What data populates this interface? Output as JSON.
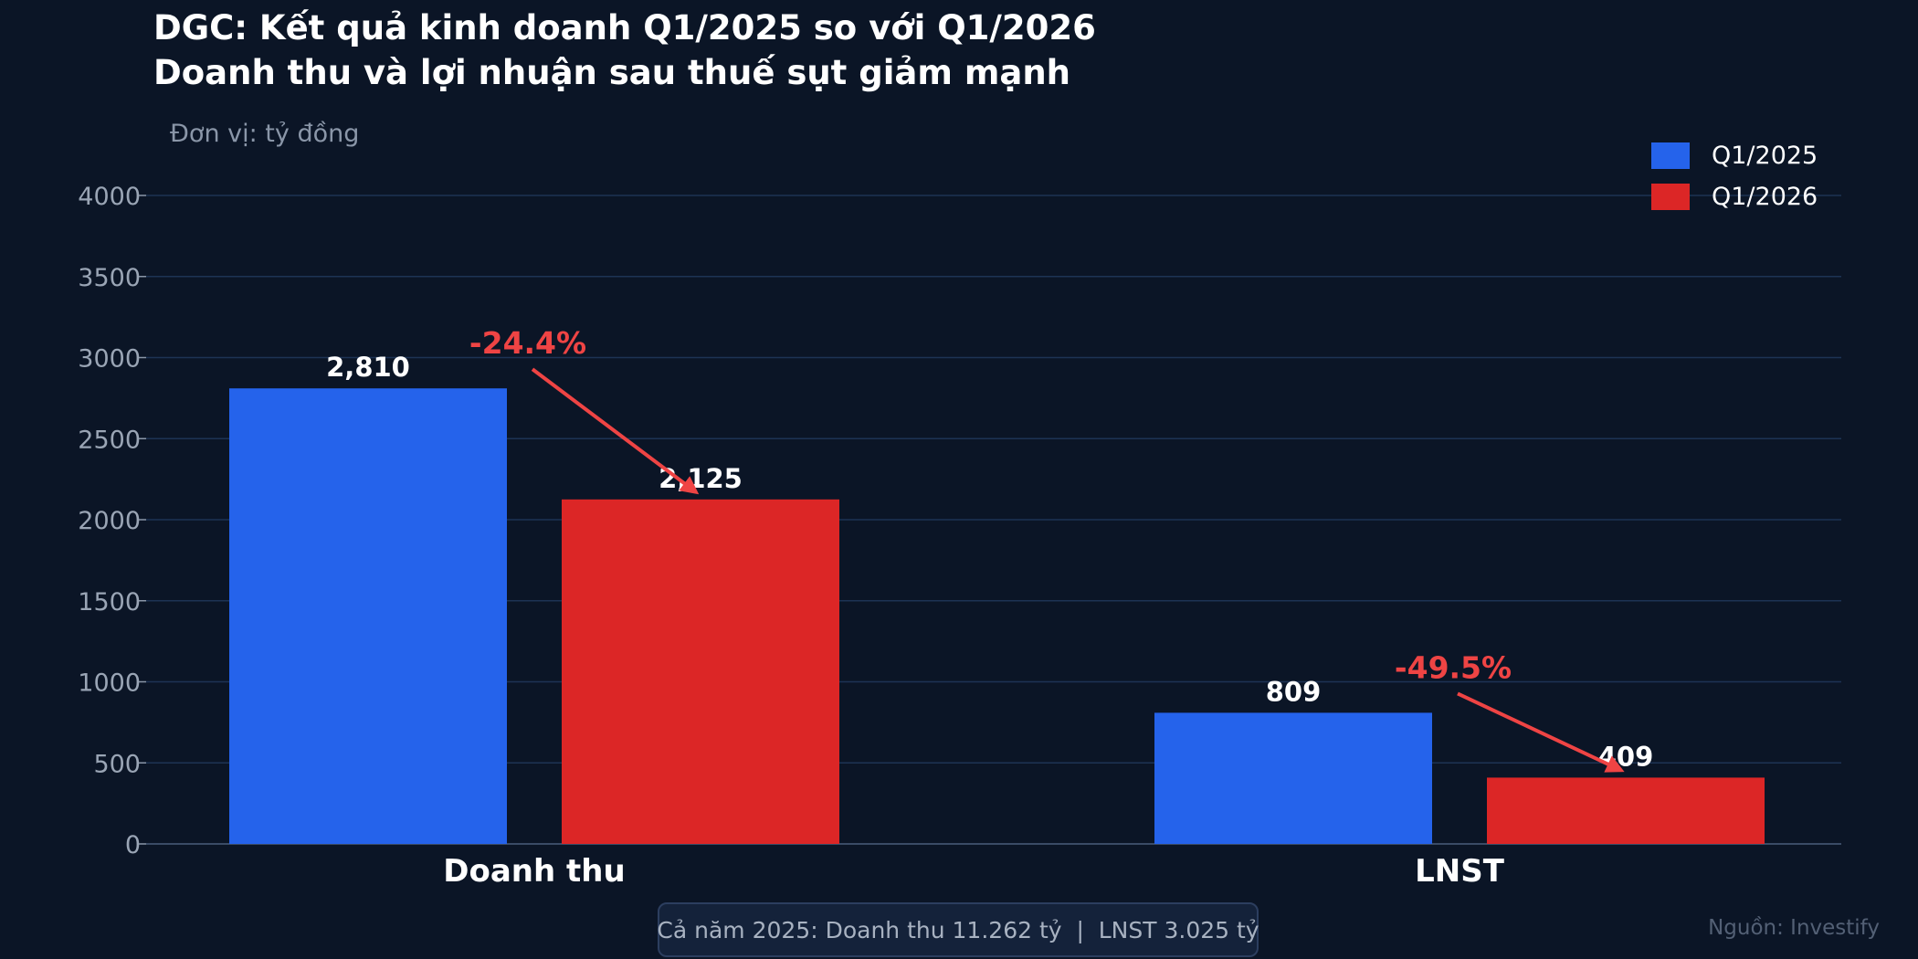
{
  "header": {
    "title_line1": "DGC: Kết quả kinh doanh Q1/2025 so với Q1/2026",
    "title_line2": "Doanh thu và lợi nhuận sau thuế sụt giảm mạnh",
    "unit": "Đơn vị: tỷ đồng"
  },
  "legend": [
    {
      "label": "Q1/2025",
      "color": "#2563eb"
    },
    {
      "label": "Q1/2026",
      "color": "#dc2626"
    }
  ],
  "footer": {
    "note": "Cả năm 2025: Doanh thu 11.262 tỷ  |  LNST 3.025 tỷ",
    "source": "Nguồn: Investify"
  },
  "chart_data": {
    "type": "bar",
    "title": "DGC: Kết quả kinh doanh Q1/2025 so với Q1/2026",
    "subtitle": "Doanh thu và lợi nhuận sau thuế sụt giảm mạnh",
    "ylabel": "Đơn vị: tỷ đồng",
    "categories": [
      "Doanh thu",
      "LNST"
    ],
    "series": [
      {
        "name": "Q1/2025",
        "values": [
          2810,
          809
        ],
        "labels": [
          "2,810",
          "809"
        ],
        "color": "#2563eb"
      },
      {
        "name": "Q1/2026",
        "values": [
          2125,
          409
        ],
        "labels": [
          "2,125",
          "409"
        ],
        "color": "#dc2626"
      }
    ],
    "annotations": [
      "-24.4%",
      "-49.5%"
    ],
    "annotation_color": "#ef4444",
    "ylim": [
      0,
      4000
    ],
    "yticks": [
      0,
      500,
      1000,
      1500,
      2000,
      2500,
      3000,
      3500,
      4000
    ],
    "grid": true,
    "legend_position": "top-right"
  }
}
